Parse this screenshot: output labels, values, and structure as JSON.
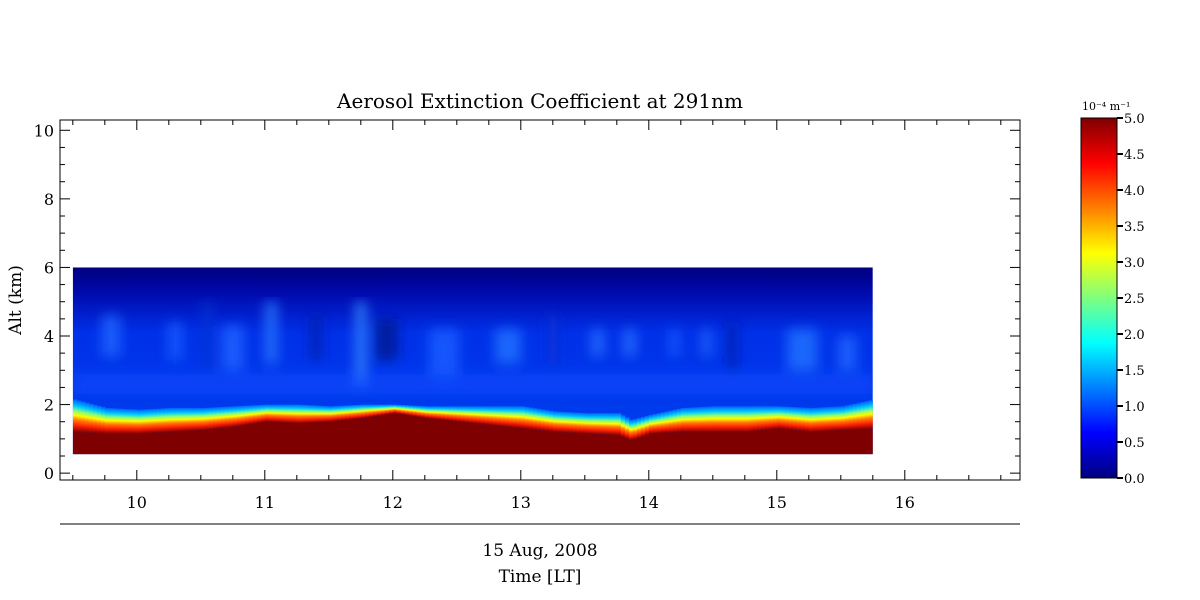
{
  "chart_data": {
    "type": "heatmap",
    "title": "Aerosol Extinction Coefficient at 291nm",
    "xlabel": "Time [LT]",
    "date_label": "15 Aug, 2008",
    "ylabel": "Alt (km)",
    "xlim": [
      9.4,
      16.9
    ],
    "ylim": [
      -0.2,
      10.3
    ],
    "x_ticks": [
      10,
      11,
      12,
      13,
      14,
      15,
      16
    ],
    "y_ticks": [
      0,
      2,
      4,
      6,
      8,
      10
    ],
    "data_extent": {
      "x": [
        9.5,
        15.75
      ],
      "y": [
        0.55,
        6.0
      ]
    },
    "colorbar": {
      "unit_label": "10⁻⁴ m⁻¹",
      "range": [
        0,
        5
      ],
      "ticks": [
        "0.0",
        "0.5",
        "1.0",
        "1.5",
        "2.0",
        "2.5",
        "3.0",
        "3.5",
        "4.0",
        "4.5",
        "5.0"
      ],
      "colormap": "jet",
      "colors": [
        "#00007f",
        "#0000ff",
        "#007fff",
        "#00ffff",
        "#7fff7f",
        "#ffff00",
        "#ff7f00",
        "#ff0000",
        "#7f0000"
      ]
    },
    "profile": {
      "time": [
        9.5,
        9.75,
        10.0,
        10.25,
        10.5,
        10.75,
        11.0,
        11.25,
        11.5,
        11.75,
        12.0,
        12.25,
        12.5,
        12.75,
        13.0,
        13.25,
        13.5,
        13.75,
        13.85,
        14.0,
        14.25,
        14.5,
        14.75,
        15.0,
        15.25,
        15.5,
        15.75
      ],
      "top_of_saturated_layer_km": [
        1.2,
        1.15,
        1.15,
        1.2,
        1.25,
        1.35,
        1.5,
        1.45,
        1.5,
        1.6,
        1.75,
        1.6,
        1.5,
        1.4,
        1.3,
        1.2,
        1.15,
        1.1,
        0.95,
        1.15,
        1.2,
        1.2,
        1.2,
        1.3,
        1.2,
        1.25,
        1.3
      ],
      "boundary_layer_top_km": [
        2.15,
        1.9,
        1.85,
        1.9,
        1.9,
        1.95,
        2.0,
        2.0,
        1.95,
        2.0,
        2.0,
        1.95,
        1.95,
        1.95,
        1.95,
        1.8,
        1.75,
        1.75,
        1.55,
        1.7,
        1.9,
        1.95,
        1.95,
        1.95,
        1.9,
        1.95,
        2.15
      ]
    }
  }
}
